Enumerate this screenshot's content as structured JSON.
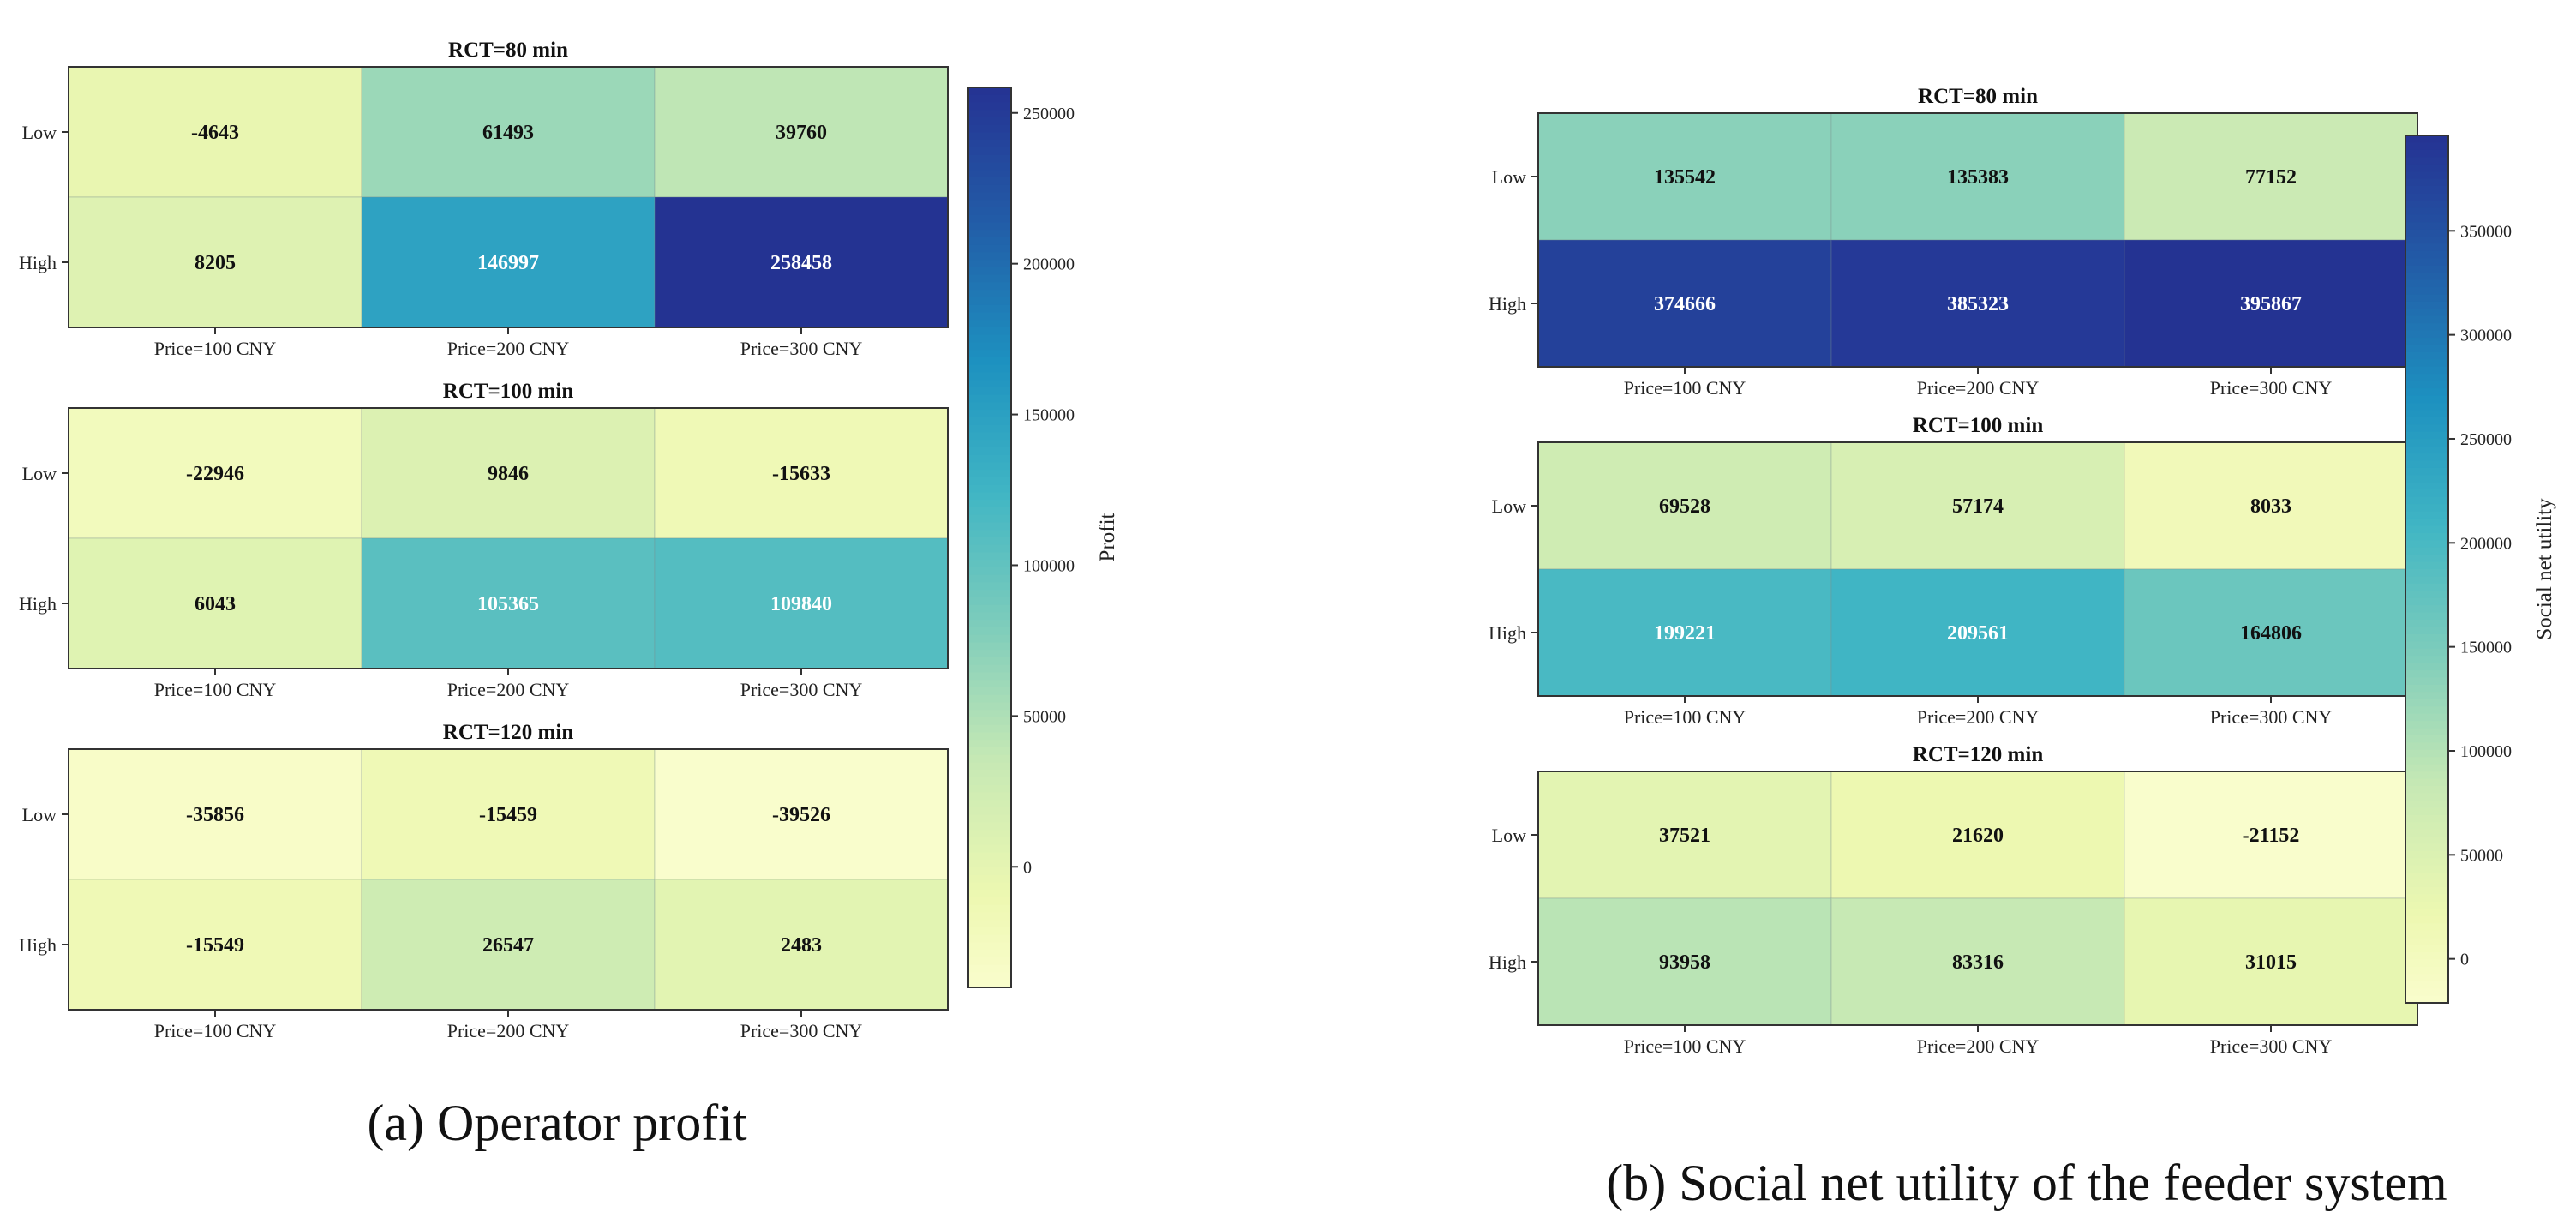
{
  "chart_data": [
    {
      "type": "heatmap",
      "id": "operator-profit",
      "caption": "(a) Operator profit",
      "colorbar_label": "Profit",
      "colorbar_ticks": [
        0,
        50000,
        100000,
        150000,
        200000,
        250000
      ],
      "vmin": -40000,
      "vmax": 258458,
      "rows": [
        "Low",
        "High"
      ],
      "columns": [
        "Price=100 CNY",
        "Price=200 CNY",
        "Price=300 CNY"
      ],
      "panels": [
        {
          "title": "RCT=80 min",
          "values": [
            [
              -4643,
              61493,
              39760
            ],
            [
              8205,
              146997,
              258458
            ]
          ]
        },
        {
          "title": "RCT=100 min",
          "values": [
            [
              -22946,
              9846,
              -15633
            ],
            [
              6043,
              105365,
              109840
            ]
          ]
        },
        {
          "title": "RCT=120 min",
          "values": [
            [
              -35856,
              -15459,
              -39526
            ],
            [
              -15549,
              26547,
              2483
            ]
          ]
        }
      ]
    },
    {
      "type": "heatmap",
      "id": "social-net-utility",
      "caption": "(b) Social net utility of the feeder system",
      "colorbar_label": "Social net utility",
      "colorbar_ticks": [
        0,
        50000,
        100000,
        150000,
        200000,
        250000,
        300000,
        350000
      ],
      "vmin": -21152,
      "vmax": 395867,
      "rows": [
        "Low",
        "High"
      ],
      "columns": [
        "Price=100 CNY",
        "Price=200 CNY",
        "Price=300 CNY"
      ],
      "panels": [
        {
          "title": "RCT=80 min",
          "values": [
            [
              135542,
              135383,
              77152
            ],
            [
              374666,
              385323,
              395867
            ]
          ]
        },
        {
          "title": "RCT=100 min",
          "values": [
            [
              69528,
              57174,
              8033
            ],
            [
              199221,
              209561,
              164806
            ]
          ]
        },
        {
          "title": "RCT=120 min",
          "values": [
            [
              37521,
              21620,
              -21152
            ],
            [
              93958,
              83316,
              31015
            ]
          ]
        }
      ]
    }
  ]
}
